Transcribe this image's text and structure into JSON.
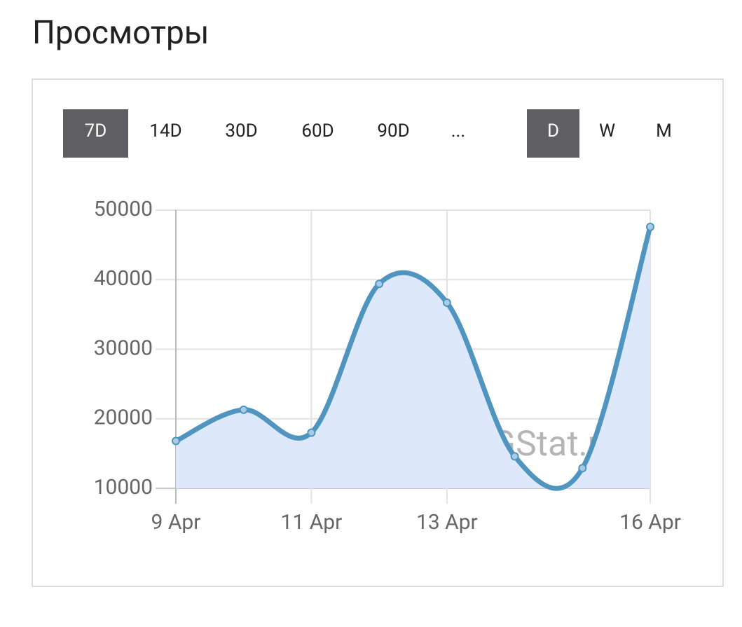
{
  "title": "Просмотры",
  "controls": [
    {
      "label": "7D",
      "active": true
    },
    {
      "label": "14D",
      "active": false
    },
    {
      "label": "30D",
      "active": false
    },
    {
      "label": "60D",
      "active": false
    },
    {
      "label": "90D",
      "active": false
    },
    {
      "label": "...",
      "active": false
    },
    {
      "label": "D",
      "active": true
    },
    {
      "label": "W",
      "active": false
    },
    {
      "label": "M",
      "active": false
    }
  ],
  "chart_data": {
    "type": "line",
    "categories": [
      "9 Apr",
      null,
      "11 Apr",
      null,
      "13 Apr",
      null,
      null,
      "16 Apr"
    ],
    "series": [
      {
        "name": "Просмотры",
        "color": "#4f95c0",
        "fill": "#dde9fa",
        "values": [
          16800,
          21300,
          18000,
          39400,
          36700,
          14600,
          12900,
          47600
        ]
      }
    ],
    "ylim": [
      10000,
      50000
    ],
    "yticks": [
      10000,
      20000,
      30000,
      40000,
      50000
    ],
    "grid": true,
    "watermark": "TGStat.ru"
  }
}
